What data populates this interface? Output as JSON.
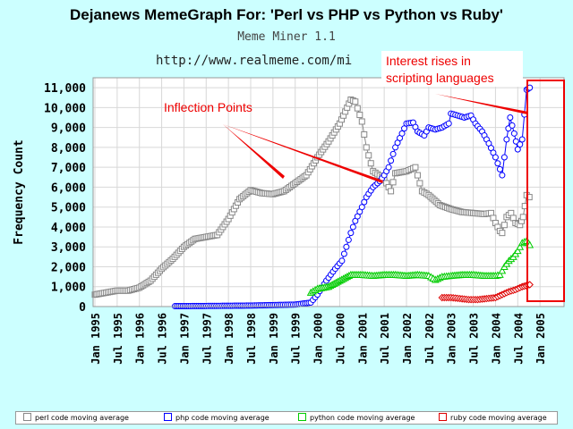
{
  "title": "Dejanews MemeGraph For: 'Perl vs PHP vs Python vs Ruby'",
  "subtitle": "Meme Miner 1.1",
  "url": "http://www.realmeme.com/mi",
  "annotations": {
    "inflection": "Inflection Points",
    "interest_line1": "Interest rises in",
    "interest_line2": "scripting languages"
  },
  "legend": [
    {
      "label": "perl code moving average",
      "color": "#888888"
    },
    {
      "label": "php code moving average",
      "color": "#0000ff"
    },
    {
      "label": "python code moving average",
      "color": "#00cc00"
    },
    {
      "label": "ruby code moving average",
      "color": "#dd0000"
    }
  ],
  "chart_data": {
    "type": "line",
    "ylabel": "Frequency Count",
    "ylim": [
      0,
      11500
    ],
    "yticks": [
      0,
      1000,
      2000,
      3000,
      4000,
      5000,
      6000,
      7000,
      8000,
      9000,
      10000,
      11000
    ],
    "ytick_labels": [
      "0",
      "1,000",
      "2,000",
      "3,000",
      "4,000",
      "5,000",
      "6,000",
      "7,000",
      "8,000",
      "9,000",
      "10,000",
      "11,000"
    ],
    "xlim": [
      1995.0,
      2005.5
    ],
    "xticks": [
      1995.0,
      1995.5,
      1996.0,
      1996.5,
      1997.0,
      1997.5,
      1998.0,
      1998.5,
      1999.0,
      1999.5,
      2000.0,
      2000.5,
      2001.0,
      2001.5,
      2002.0,
      2002.5,
      2003.0,
      2003.5,
      2004.0,
      2004.5,
      2005.0
    ],
    "xtick_labels": [
      "Jan 1995",
      "Jul 1995",
      "Jan 1996",
      "Jul 1996",
      "Jan 1997",
      "Jul 1997",
      "Jan 1998",
      "Jul 1998",
      "Jan 1999",
      "Jul 1999",
      "Jan 2000",
      "Jul 2000",
      "Jan 2001",
      "Jul 2001",
      "Jan 2002",
      "Jul 2002",
      "Jan 2003",
      "Jul 2003",
      "Jan 2004",
      "Jul 2004",
      "Jan 2005"
    ],
    "grid": true,
    "legend_position": "bottom",
    "series": [
      {
        "name": "perl code moving average",
        "color": "#888888",
        "marker": "square",
        "points": [
          [
            1995.0,
            600
          ],
          [
            1995.25,
            700
          ],
          [
            1995.5,
            800
          ],
          [
            1995.75,
            800
          ],
          [
            1996.0,
            950
          ],
          [
            1996.25,
            1300
          ],
          [
            1996.5,
            1900
          ],
          [
            1996.75,
            2400
          ],
          [
            1997.0,
            3000
          ],
          [
            1997.25,
            3400
          ],
          [
            1997.5,
            3500
          ],
          [
            1997.75,
            3600
          ],
          [
            1998.0,
            4400
          ],
          [
            1998.25,
            5400
          ],
          [
            1998.5,
            5850
          ],
          [
            1998.75,
            5700
          ],
          [
            1999.0,
            5650
          ],
          [
            1999.25,
            5800
          ],
          [
            1999.5,
            6200
          ],
          [
            1999.75,
            6600
          ],
          [
            2000.0,
            7500
          ],
          [
            2000.25,
            8300
          ],
          [
            2000.5,
            9200
          ],
          [
            2000.75,
            10400
          ],
          [
            2000.85,
            10300
          ],
          [
            2001.0,
            9300
          ],
          [
            2001.1,
            8000
          ],
          [
            2001.25,
            6800
          ],
          [
            2001.45,
            6500
          ],
          [
            2001.55,
            6200
          ],
          [
            2001.65,
            5800
          ],
          [
            2001.75,
            6700
          ],
          [
            2002.0,
            6800
          ],
          [
            2002.2,
            7000
          ],
          [
            2002.35,
            5800
          ],
          [
            2002.5,
            5600
          ],
          [
            2002.75,
            5100
          ],
          [
            2003.0,
            4900
          ],
          [
            2003.25,
            4750
          ],
          [
            2003.5,
            4700
          ],
          [
            2003.75,
            4650
          ],
          [
            2003.9,
            4700
          ],
          [
            2004.0,
            4200
          ],
          [
            2004.1,
            3800
          ],
          [
            2004.15,
            3700
          ],
          [
            2004.25,
            4500
          ],
          [
            2004.35,
            4700
          ],
          [
            2004.45,
            4200
          ],
          [
            2004.55,
            4100
          ],
          [
            2004.62,
            4500
          ],
          [
            2004.7,
            5600
          ],
          [
            2004.76,
            5500
          ]
        ]
      },
      {
        "name": "php code moving average",
        "color": "#0000ff",
        "marker": "circle",
        "points": [
          [
            1996.8,
            20
          ],
          [
            1997.5,
            30
          ],
          [
            1998.5,
            50
          ],
          [
            1999.5,
            100
          ],
          [
            1999.85,
            200
          ],
          [
            2000.0,
            600
          ],
          [
            2000.2,
            1300
          ],
          [
            2000.4,
            1900
          ],
          [
            2000.55,
            2300
          ],
          [
            2000.65,
            3000
          ],
          [
            2000.75,
            3700
          ],
          [
            2000.85,
            4300
          ],
          [
            2001.0,
            5000
          ],
          [
            2001.1,
            5500
          ],
          [
            2001.25,
            6000
          ],
          [
            2001.4,
            6300
          ],
          [
            2001.5,
            6600
          ],
          [
            2001.6,
            7000
          ],
          [
            2001.75,
            8000
          ],
          [
            2001.9,
            8700
          ],
          [
            2002.0,
            9200
          ],
          [
            2002.15,
            9250
          ],
          [
            2002.25,
            8800
          ],
          [
            2002.4,
            8600
          ],
          [
            2002.5,
            9000
          ],
          [
            2002.65,
            8900
          ],
          [
            2002.8,
            9000
          ],
          [
            2002.95,
            9200
          ],
          [
            2003.0,
            9700
          ],
          [
            2003.15,
            9600
          ],
          [
            2003.3,
            9500
          ],
          [
            2003.45,
            9600
          ],
          [
            2003.55,
            9200
          ],
          [
            2003.7,
            8800
          ],
          [
            2003.85,
            8200
          ],
          [
            2004.0,
            7500
          ],
          [
            2004.1,
            6900
          ],
          [
            2004.15,
            6600
          ],
          [
            2004.25,
            8400
          ],
          [
            2004.33,
            9500
          ],
          [
            2004.42,
            8700
          ],
          [
            2004.5,
            7900
          ],
          [
            2004.6,
            8400
          ],
          [
            2004.7,
            10900
          ],
          [
            2004.77,
            11000
          ]
        ]
      },
      {
        "name": "python code moving average",
        "color": "#00cc00",
        "marker": "triangle",
        "points": [
          [
            1999.85,
            700
          ],
          [
            2000.0,
            900
          ],
          [
            2000.25,
            1000
          ],
          [
            2000.5,
            1300
          ],
          [
            2000.75,
            1600
          ],
          [
            2001.0,
            1600
          ],
          [
            2001.25,
            1550
          ],
          [
            2001.5,
            1600
          ],
          [
            2001.75,
            1600
          ],
          [
            2002.0,
            1550
          ],
          [
            2002.25,
            1600
          ],
          [
            2002.5,
            1550
          ],
          [
            2002.65,
            1350
          ],
          [
            2002.8,
            1500
          ],
          [
            2003.0,
            1550
          ],
          [
            2003.25,
            1600
          ],
          [
            2003.5,
            1600
          ],
          [
            2003.75,
            1550
          ],
          [
            2004.0,
            1550
          ],
          [
            2004.1,
            1600
          ],
          [
            2004.2,
            2000
          ],
          [
            2004.3,
            2300
          ],
          [
            2004.4,
            2500
          ],
          [
            2004.5,
            2800
          ],
          [
            2004.6,
            3200
          ],
          [
            2004.7,
            3300
          ],
          [
            2004.77,
            3100
          ]
        ]
      },
      {
        "name": "ruby code moving average",
        "color": "#dd0000",
        "marker": "diamond",
        "points": [
          [
            2002.8,
            450
          ],
          [
            2003.0,
            450
          ],
          [
            2003.2,
            400
          ],
          [
            2003.4,
            350
          ],
          [
            2003.6,
            350
          ],
          [
            2003.8,
            400
          ],
          [
            2004.0,
            450
          ],
          [
            2004.15,
            600
          ],
          [
            2004.3,
            750
          ],
          [
            2004.45,
            850
          ],
          [
            2004.6,
            1000
          ],
          [
            2004.77,
            1100
          ]
        ]
      }
    ]
  }
}
